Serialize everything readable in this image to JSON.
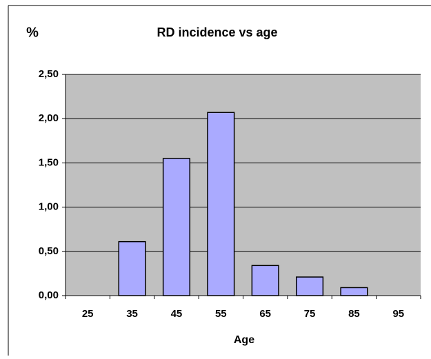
{
  "chart_data": {
    "type": "bar",
    "title": "RD incidence vs age",
    "y_label": "%",
    "x_label": "Age",
    "categories": [
      "25",
      "35",
      "45",
      "55",
      "65",
      "75",
      "85",
      "95"
    ],
    "values": [
      0,
      0.61,
      1.55,
      2.07,
      0.34,
      0.21,
      0.09,
      0
    ],
    "color": "#aaaaff",
    "ylim": [
      0,
      2.5
    ],
    "yticks": [
      {
        "value": 0,
        "label": "0,00"
      },
      {
        "value": 0.5,
        "label": "0,50"
      },
      {
        "value": 1,
        "label": "1,00"
      },
      {
        "value": 1.5,
        "label": "1,50"
      },
      {
        "value": 2,
        "label": "2,00"
      },
      {
        "value": 2.5,
        "label": "2,50"
      }
    ],
    "grid": true
  }
}
